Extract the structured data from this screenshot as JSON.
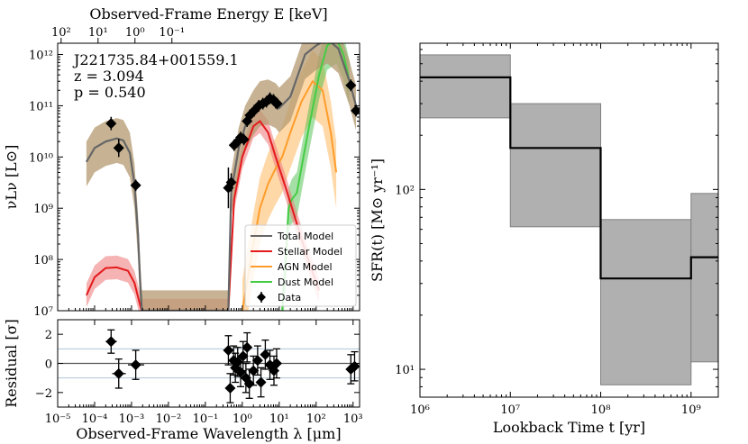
{
  "chart_data": [
    {
      "type": "line",
      "panel": "sed",
      "top_axis_label": "Observed-Frame Energy E [keV]",
      "top_ticks": [
        "10²",
        "10¹",
        "10⁰",
        "10⁻¹"
      ],
      "top_tick_wavelengths_um": [
        1.24e-05,
        0.000124,
        0.00124,
        0.0124
      ],
      "ylabel": "νLν [L⊙]",
      "x_log_range_um": [
        1e-05,
        1500
      ],
      "y_log_range": [
        10000000,
        1000000000000
      ],
      "y_ticks": [
        "10⁷",
        "10⁸",
        "10⁹",
        "10¹⁰",
        "10¹¹",
        "10¹²"
      ],
      "y_tick_values": [
        10000000,
        100000000,
        1000000000,
        10000000000,
        100000000000,
        1000000000000
      ],
      "annotation": [
        "J221735.84+001559.1",
        "z = 3.094",
        "p = 0.540"
      ],
      "legend": [
        {
          "label": "Total Model",
          "color": "#666666",
          "kind": "line"
        },
        {
          "label": "Stellar Model",
          "color": "#e41a1c",
          "kind": "line"
        },
        {
          "label": "AGN Model",
          "color": "#ff9d2a",
          "kind": "line"
        },
        {
          "label": "Dust Model",
          "color": "#44cc44",
          "kind": "line"
        },
        {
          "label": "Data",
          "color": "#000000",
          "kind": "marker"
        }
      ],
      "series": [
        {
          "name": "Total Model",
          "color": "#666666",
          "x": [
            6e-05,
            0.0001,
            0.0002,
            0.0004,
            0.0006,
            0.0009,
            0.0012,
            0.0015,
            0.0017,
            0.0019,
            0.42,
            0.5,
            0.8,
            1.2,
            2,
            3,
            5,
            8,
            10,
            20,
            50,
            100,
            200,
            400,
            800,
            1200
          ],
          "y": [
            8000000000,
            15000000000,
            20000000000,
            23000000000,
            21000000000,
            12000000000,
            3000000000,
            300000000,
            40000000,
            10000000,
            10000000,
            2000000000,
            15000000000,
            40000000000,
            80000000000,
            120000000000,
            130000000000,
            110000000000,
            90000000000,
            150000000000,
            1000000000000,
            1500000000000,
            2000000000000,
            1300000000000,
            300000000000,
            100000000000
          ]
        },
        {
          "name": "Stellar Model",
          "color": "#e41a1c",
          "x": [
            6e-05,
            0.0001,
            0.0002,
            0.0004,
            0.0008,
            0.0012,
            0.0017,
            0.0019,
            0.42,
            0.6,
            1,
            2,
            3,
            5,
            8,
            15,
            30,
            60,
            120
          ],
          "y": [
            20000000,
            45000000,
            68000000,
            70000000,
            60000000,
            35000000,
            13000000,
            10000000,
            10000000,
            1500000000,
            10000000000,
            40000000000,
            50000000000,
            30000000000,
            10000000000,
            2500000000,
            500000000,
            100000000,
            25000000
          ]
        },
        {
          "name": "AGN Model",
          "color": "#ff9d2a",
          "x": [
            1,
            2,
            3,
            5,
            8,
            12,
            20,
            40,
            80,
            150,
            250,
            350
          ],
          "y": [
            10000000,
            200000000,
            1000000000,
            3000000000,
            6000000000,
            10000000000,
            30000000000,
            120000000000,
            300000000000,
            200000000000,
            30000000000,
            5000000000
          ]
        },
        {
          "name": "Dust Model",
          "color": "#44cc44",
          "x": [
            12,
            15,
            18,
            22,
            30,
            60,
            120,
            200,
            350,
            550,
            800
          ],
          "y": [
            10000000,
            100000000,
            1000000000,
            1500000000,
            2000000000,
            30000000000,
            400000000000,
            1500000000000,
            2000000000000,
            1000000000000,
            300000000000
          ]
        }
      ],
      "data_points": [
        {
          "x": 0.00028,
          "y": 45000000000,
          "yerr": 1.35
        },
        {
          "x": 0.00045,
          "y": 15000000000,
          "yerr": 1.5
        },
        {
          "x": 0.0013,
          "y": 2800000000,
          "yerr": 1.3
        },
        {
          "x": 0.42,
          "y": 2500000000,
          "yerr": 2.5
        },
        {
          "x": 0.5,
          "y": 3200000000,
          "yerr": 1.5
        },
        {
          "x": 0.6,
          "y": 17000000000,
          "yerr": 1.3
        },
        {
          "x": 0.75,
          "y": 20000000000,
          "yerr": 1.3
        },
        {
          "x": 0.9,
          "y": 24000000000,
          "yerr": 1.3
        },
        {
          "x": 1.1,
          "y": 22000000000,
          "yerr": 1.3
        },
        {
          "x": 1.35,
          "y": 50000000000,
          "yerr": 1.3
        },
        {
          "x": 1.6,
          "y": 65000000000,
          "yerr": 1.3
        },
        {
          "x": 2.1,
          "y": 80000000000,
          "yerr": 1.3
        },
        {
          "x": 2.8,
          "y": 100000000000,
          "yerr": 1.3
        },
        {
          "x": 3.6,
          "y": 110000000000,
          "yerr": 1.3
        },
        {
          "x": 4.5,
          "y": 120000000000,
          "yerr": 1.3
        },
        {
          "x": 5.6,
          "y": 140000000000,
          "yerr": 1.3
        },
        {
          "x": 7,
          "y": 130000000000,
          "yerr": 1.3
        },
        {
          "x": 8,
          "y": 115000000000,
          "yerr": 1.3
        },
        {
          "x": 8.8,
          "y": 110000000000,
          "yerr": 1.3
        },
        {
          "x": 870,
          "y": 250000000000,
          "yerr": 1.3
        },
        {
          "x": 1200,
          "y": 80000000000,
          "yerr": 1.3
        }
      ]
    },
    {
      "type": "scatter",
      "panel": "residual",
      "xlabel": "Observed-Frame Wavelength λ [μm]",
      "ylabel": "Residual [σ]",
      "x_log_range_um": [
        1e-05,
        1500
      ],
      "ylim": [
        -3,
        3
      ],
      "y_ticks": [
        "−2",
        "0",
        "2"
      ],
      "y_tick_values": [
        -2,
        0,
        2
      ],
      "x_ticks": [
        "10⁻⁵",
        "10⁻⁴",
        "10⁻³",
        "10⁻²",
        "10⁻¹",
        "10⁰",
        "10¹",
        "10²",
        "10³"
      ],
      "x_tick_values": [
        1e-05,
        0.0001,
        0.001,
        0.01,
        0.1,
        1,
        10,
        100,
        1000
      ],
      "guide_lines": [
        -1,
        1
      ],
      "points": [
        {
          "x": 0.00028,
          "y": 1.5,
          "xerr": [
            0.0002,
            0.0004
          ],
          "yerr": 0.8
        },
        {
          "x": 0.00045,
          "y": -0.7,
          "xerr": [
            0.0003,
            0.0007
          ],
          "yerr": 1
        },
        {
          "x": 0.0013,
          "y": -0.1,
          "xerr": [
            0.0008,
            0.0022
          ],
          "yerr": 1
        },
        {
          "x": 0.42,
          "y": 0.9,
          "xerr": null,
          "yerr": 1
        },
        {
          "x": 0.47,
          "y": -1.7,
          "xerr": null,
          "yerr": 1
        },
        {
          "x": 0.58,
          "y": 0.2,
          "xerr": null,
          "yerr": 1
        },
        {
          "x": 0.65,
          "y": -0.3,
          "xerr": null,
          "yerr": 1
        },
        {
          "x": 0.75,
          "y": 0.1,
          "xerr": null,
          "yerr": 1
        },
        {
          "x": 0.9,
          "y": -0.6,
          "xerr": null,
          "yerr": 1
        },
        {
          "x": 1.05,
          "y": 0.5,
          "xerr": null,
          "yerr": 1
        },
        {
          "x": 1.25,
          "y": -1,
          "xerr": null,
          "yerr": 1
        },
        {
          "x": 1.35,
          "y": 1.1,
          "xerr": null,
          "yerr": 1
        },
        {
          "x": 1.55,
          "y": -1.4,
          "xerr": null,
          "yerr": 1
        },
        {
          "x": 2,
          "y": -0.5,
          "xerr": null,
          "yerr": 1
        },
        {
          "x": 2.6,
          "y": 0.2,
          "xerr": null,
          "yerr": 1
        },
        {
          "x": 3.2,
          "y": -1.3,
          "xerr": null,
          "yerr": 1
        },
        {
          "x": 4.2,
          "y": 0.6,
          "xerr": null,
          "yerr": 1
        },
        {
          "x": 5.6,
          "y": -0.1,
          "xerr": null,
          "yerr": 1
        },
        {
          "x": 7.2,
          "y": -0.5,
          "xerr": null,
          "yerr": 1
        },
        {
          "x": 8.5,
          "y": 0,
          "xerr": null,
          "yerr": 1
        },
        {
          "x": 870,
          "y": -0.4,
          "xerr": null,
          "yerr": 1
        },
        {
          "x": 1100,
          "y": -0.2,
          "xerr": null,
          "yerr": 1
        }
      ]
    },
    {
      "type": "area",
      "panel": "sfh",
      "xlabel": "Lookback Time t [yr]",
      "ylabel": "SFR(t) [M⊙ yr⁻¹]",
      "x_log_range": [
        1000000,
        2000000000
      ],
      "y_log_range": [
        7,
        650
      ],
      "x_ticks": [
        "10⁶",
        "10⁷",
        "10⁸",
        "10⁹"
      ],
      "x_tick_values": [
        1000000,
        10000000,
        100000000,
        1000000000
      ],
      "y_ticks": [
        "10¹",
        "10²"
      ],
      "y_tick_values": [
        10,
        100
      ],
      "bins": [
        {
          "t0": 1000000,
          "t1": 10000000,
          "sfr": 420,
          "lo": 250,
          "hi": 560
        },
        {
          "t0": 10000000,
          "t1": 100000000,
          "sfr": 170,
          "lo": 62,
          "hi": 300
        },
        {
          "t0": 100000000,
          "t1": 1000000000,
          "sfr": 32,
          "lo": 8.2,
          "hi": 68
        },
        {
          "t0": 1000000000,
          "t1": 2000000000,
          "sfr": 42,
          "lo": 11,
          "hi": 95
        }
      ]
    }
  ]
}
